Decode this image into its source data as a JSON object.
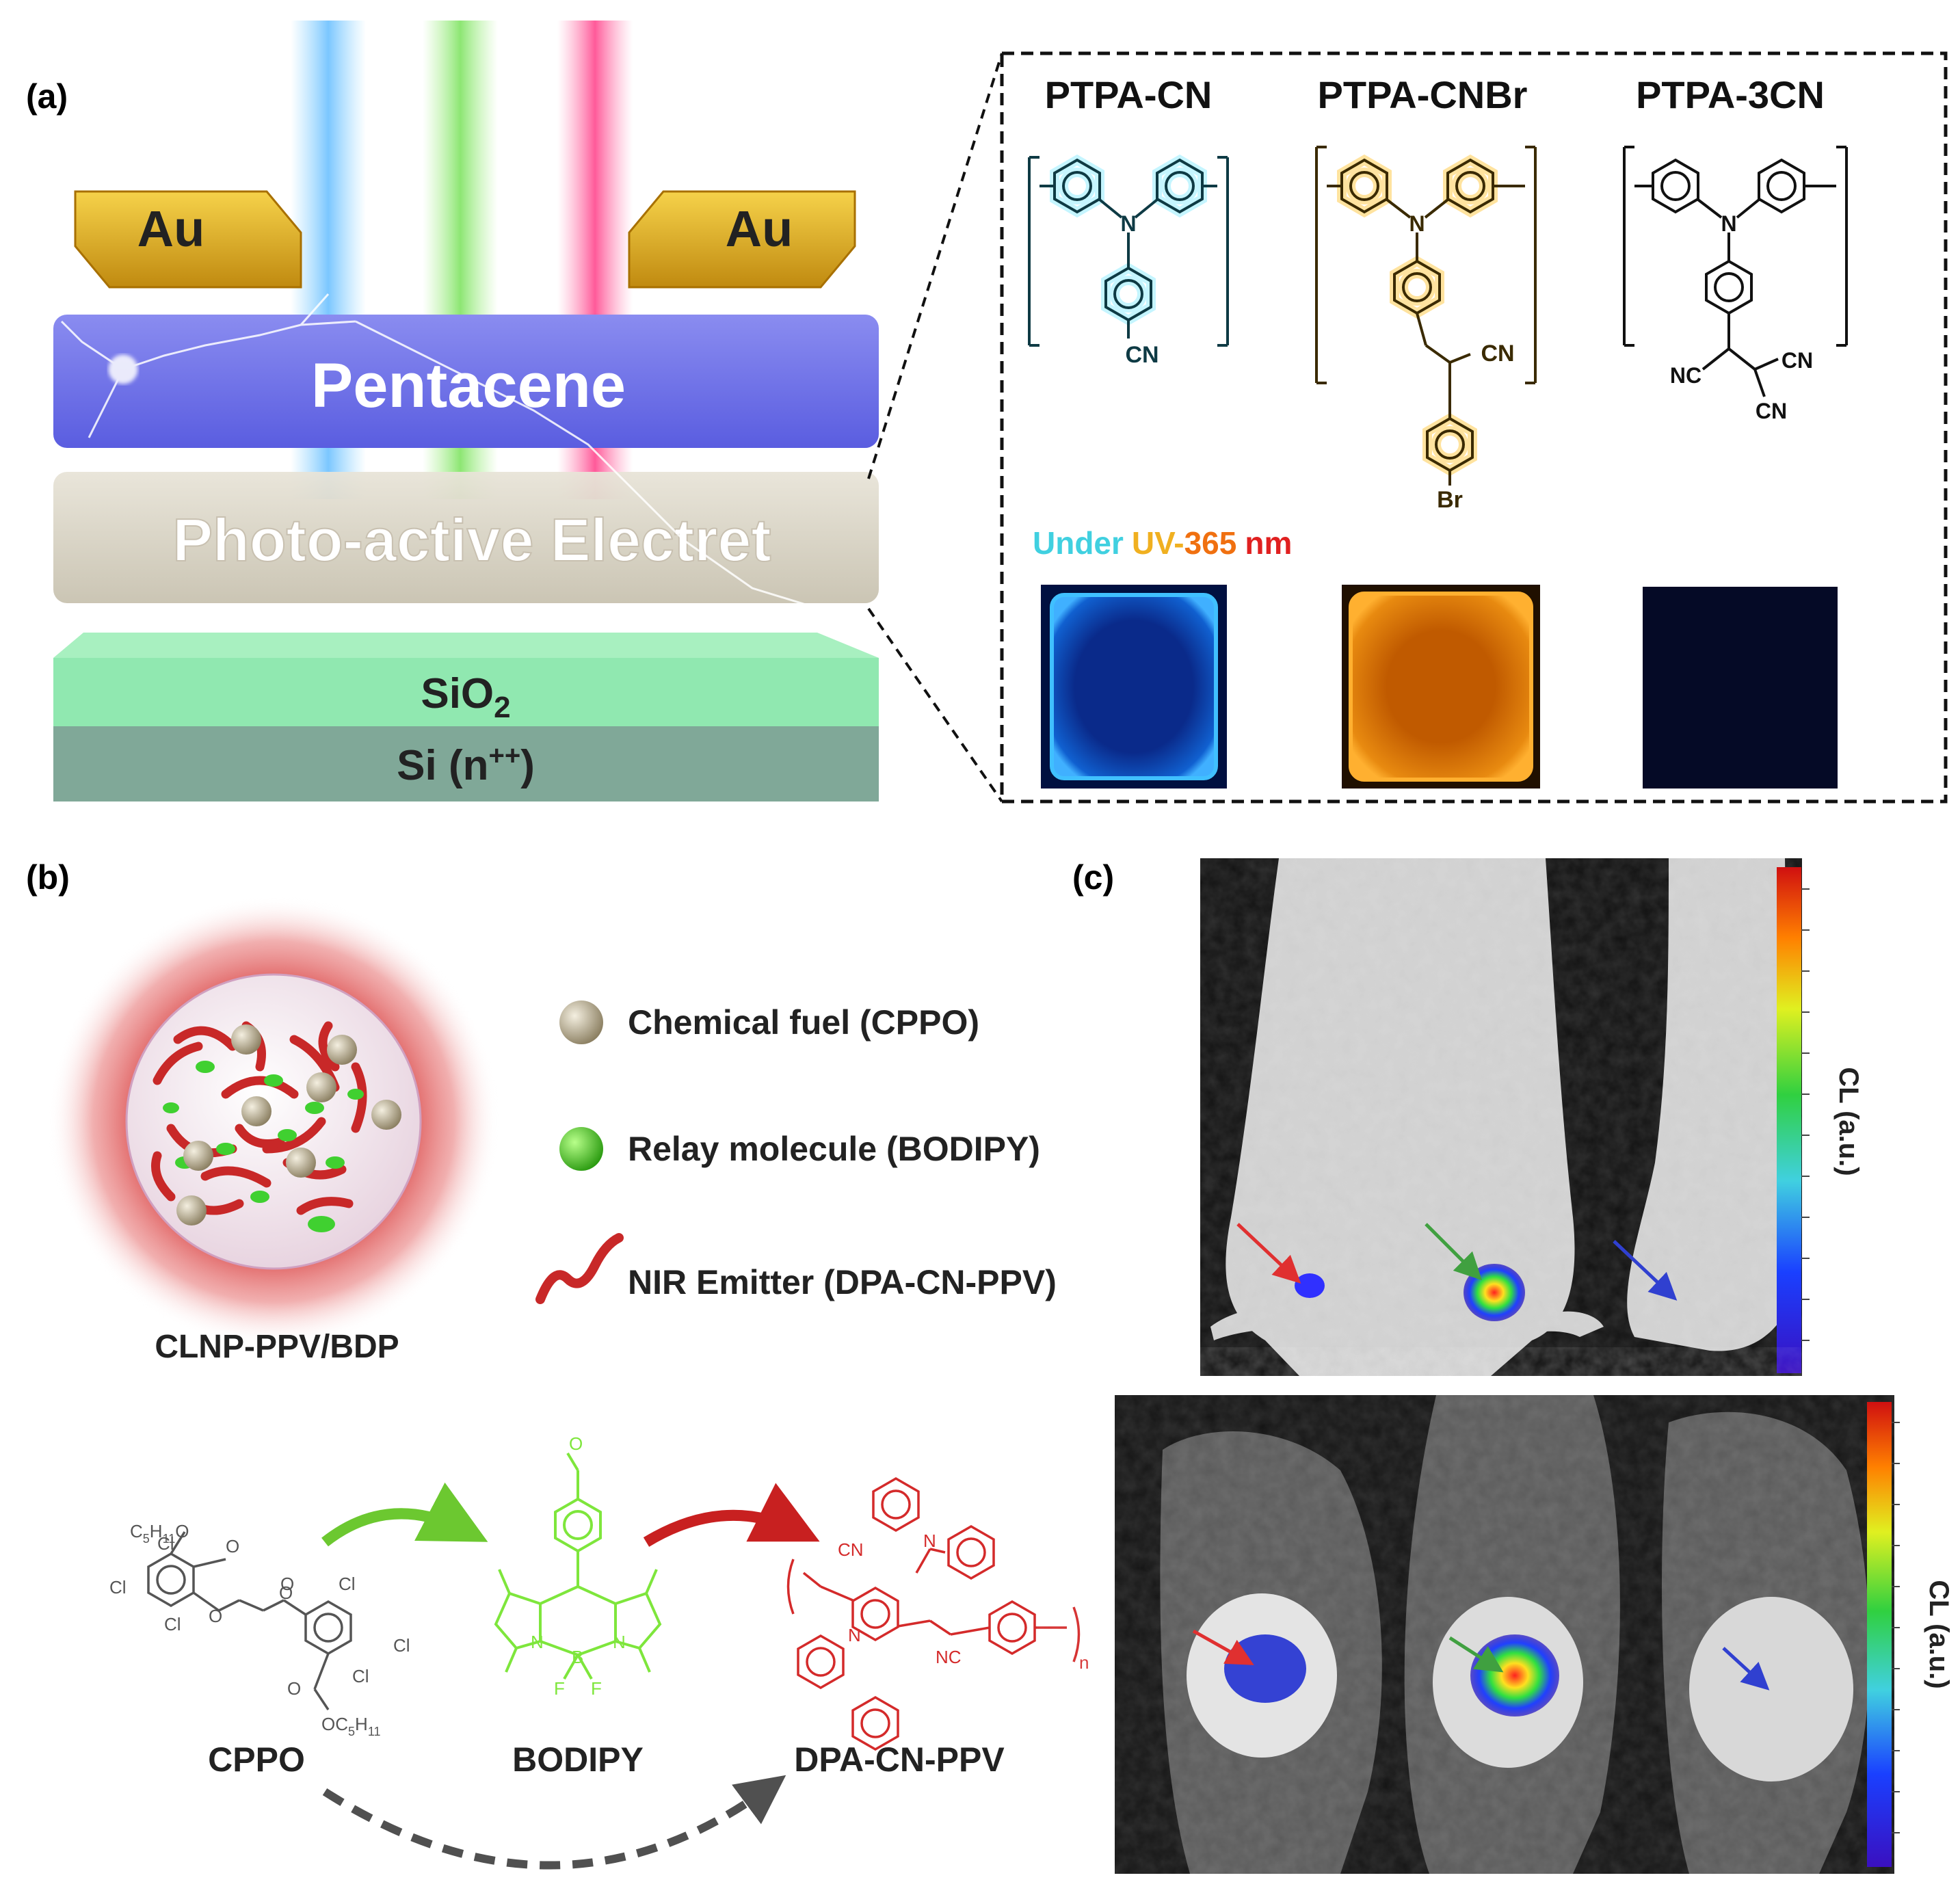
{
  "panel_a": {
    "label": "(a)",
    "electrode_left": "Au",
    "electrode_right": "Au",
    "layer_pentacene": "Pentacene",
    "layer_electret": "Photo-active Electret",
    "layer_sio2": "SiO",
    "layer_sio2_sub": "2",
    "layer_si": "Si (n",
    "layer_si_sup": "++",
    "layer_si_end": ")",
    "polymer_1": "PTPA-CN",
    "polymer_2": "PTPA-CNBr",
    "polymer_3": "PTPA-3CN",
    "atom_n": "N",
    "group_cn": "CN",
    "group_nc": "NC",
    "atom_br": "Br",
    "uv_word_1": "Under",
    "uv_word_2": "UV-",
    "uv_word_3": "365",
    "uv_word_4": "nm",
    "colors": {
      "cyan": "#22b8c8",
      "orange": "#f0a000",
      "black": "#111111"
    }
  },
  "panel_b": {
    "label": "(b)",
    "particle_label": "CLNP-PPV/BDP",
    "legend": [
      {
        "icon": "tan-sphere",
        "text": "Chemical fuel (CPPO)"
      },
      {
        "icon": "green-sphere",
        "text": "Relay molecule (BODIPY)"
      },
      {
        "icon": "red-squiggle",
        "text": "NIR Emitter (DPA-CN-PPV)"
      }
    ],
    "compound_1": "CPPO",
    "compound_2": "BODIPY",
    "compound_3": "DPA-CN-PPV",
    "cppo_atoms": {
      "cl": "Cl",
      "o": "O",
      "c5": "C",
      "c5_sub": "5",
      "h11": "H",
      "h11_sub": "11"
    },
    "bodipy_atoms": {
      "n": "N",
      "b": "B",
      "f": "F",
      "o": "O"
    },
    "ppv_atoms": {
      "n": "N",
      "cn": "CN",
      "nc": "NC",
      "sub_n": "n"
    },
    "colors": {
      "cppo": "#555555",
      "bodipy": "#7ee63c",
      "ppv": "#d42a2a"
    }
  },
  "panel_c": {
    "label": "(c)",
    "colorbar_label_top": "CL (a.u.)",
    "colorbar_label_bottom": "CL (a.u.)",
    "arrow_colors": [
      "#e03030",
      "#40a040",
      "#3040d0"
    ]
  }
}
